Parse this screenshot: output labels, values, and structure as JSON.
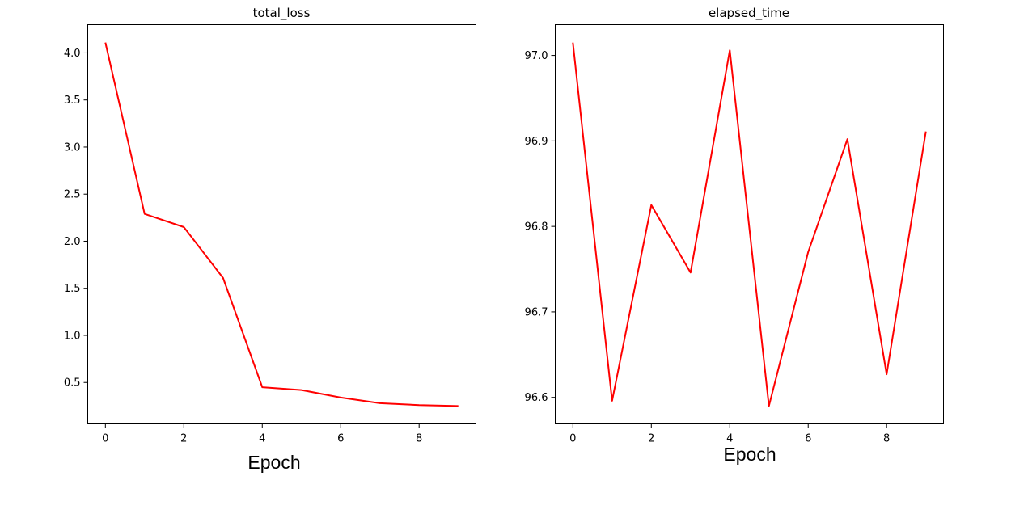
{
  "chart_data": [
    {
      "type": "line",
      "title": "total_loss",
      "xlabel": "Epoch",
      "ylabel": "",
      "x": [
        0,
        1,
        2,
        3,
        4,
        5,
        6,
        7,
        8,
        9
      ],
      "series": [
        {
          "values": [
            4.11,
            2.29,
            2.15,
            1.61,
            0.45,
            0.42,
            0.34,
            0.28,
            0.26,
            0.25
          ],
          "color": "#ff0000"
        }
      ],
      "xticks": [
        "0",
        "2",
        "4",
        "6",
        "8"
      ],
      "yticks": [
        "0.5",
        "1.0",
        "1.5",
        "2.0",
        "2.5",
        "3.0",
        "3.5",
        "4.0"
      ],
      "xlim": [
        -0.45,
        9.45
      ],
      "ylim": [
        0.06,
        4.3
      ],
      "grid": false
    },
    {
      "type": "line",
      "title": "elapsed_time",
      "xlabel": "Epoch",
      "ylabel": "",
      "x": [
        0,
        1,
        2,
        3,
        4,
        5,
        6,
        7,
        8,
        9
      ],
      "series": [
        {
          "values": [
            97.015,
            96.596,
            96.825,
            96.746,
            97.006,
            96.59,
            96.77,
            96.902,
            96.627,
            96.911
          ],
          "color": "#ff0000"
        }
      ],
      "xticks": [
        "0",
        "2",
        "4",
        "6",
        "8"
      ],
      "yticks": [
        "96.6",
        "96.7",
        "96.8",
        "96.9",
        "97.0"
      ],
      "xlim": [
        -0.45,
        9.45
      ],
      "ylim": [
        96.569,
        97.036
      ],
      "grid": false
    }
  ]
}
